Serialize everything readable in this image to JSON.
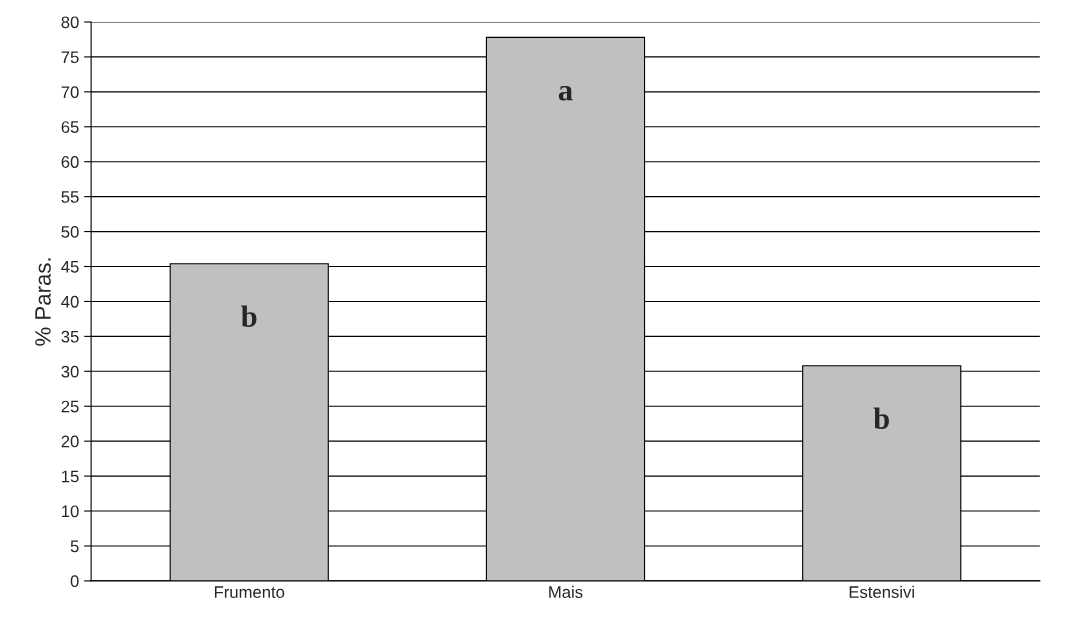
{
  "chart_data": {
    "type": "bar",
    "ylabel": "% Paras.",
    "categories": [
      "Frumento",
      "Mais",
      "Estensivi"
    ],
    "values": [
      45.4,
      77.8,
      30.8
    ],
    "color": "#c0c0c0",
    "ylim": [
      0,
      80
    ],
    "yticks": [
      0,
      5,
      10,
      15,
      20,
      25,
      30,
      35,
      40,
      45,
      50,
      55,
      60,
      65,
      70,
      75,
      80
    ],
    "grid": "y",
    "annotations": [
      "b",
      "a",
      "b"
    ]
  }
}
